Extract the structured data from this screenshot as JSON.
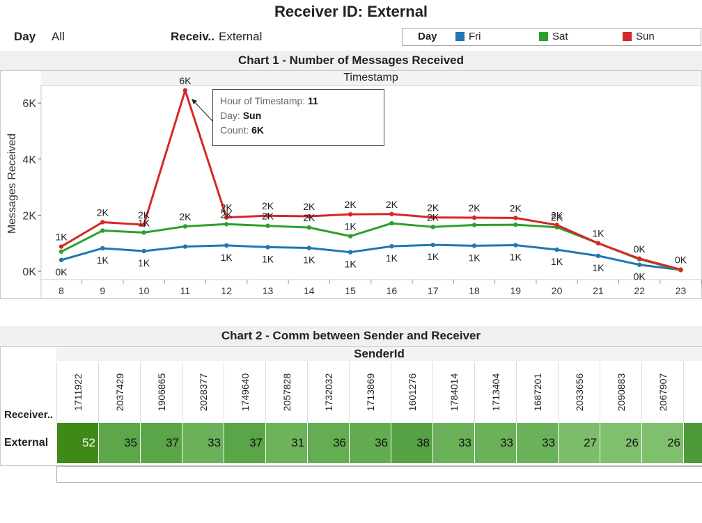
{
  "title": "Receiver ID: External",
  "filters": {
    "day_label": "Day",
    "day_value": "All",
    "receiver_label": "Receiv..",
    "receiver_value": "External"
  },
  "legend": {
    "title": "Day",
    "items": [
      {
        "label": "Fri",
        "color": "#1f77b4"
      },
      {
        "label": "Sat",
        "color": "#2ca02c"
      },
      {
        "label": "Sun",
        "color": "#d62728"
      }
    ]
  },
  "chart1": {
    "heading": "Chart 1 - Number of Messages Received",
    "column_header": "Timestamp",
    "tooltip": {
      "hour_key": "Hour of Timestamp:",
      "hour_val": "11",
      "day_key": "Day:",
      "day_val": "Sun",
      "count_key": "Count:",
      "count_val": "6K"
    }
  },
  "chart_data": {
    "type": "line",
    "x": [
      8,
      9,
      10,
      11,
      12,
      13,
      14,
      15,
      16,
      17,
      18,
      19,
      20,
      21,
      22,
      23
    ],
    "ylabel": "Messages Received",
    "xlabel": "",
    "ylim": [
      0,
      6500
    ],
    "yticks": [
      0,
      2000,
      4000,
      6000
    ],
    "ytick_labels": [
      "0K",
      "2K",
      "4K",
      "6K"
    ],
    "series": [
      {
        "name": "Fri",
        "color": "#1f77b4",
        "values": [
          400,
          820,
          720,
          880,
          920,
          860,
          830,
          680,
          890,
          940,
          910,
          930,
          770,
          550,
          230,
          50
        ],
        "labels": [
          "0K",
          "1K",
          "1K",
          "",
          "1K",
          "1K",
          "1K",
          "1K",
          "1K",
          "1K",
          "1K",
          "1K",
          "1K",
          "1K",
          "0K",
          ""
        ]
      },
      {
        "name": "Sat",
        "color": "#2ca02c",
        "values": [
          700,
          1450,
          1380,
          1600,
          1680,
          1620,
          1560,
          1250,
          1710,
          1580,
          1650,
          1660,
          1570,
          1000,
          430,
          40
        ],
        "labels": [
          "",
          "",
          "1K",
          "2K",
          "2K",
          "2K",
          "2K",
          "1K",
          "",
          "2K",
          "",
          "",
          "2K",
          "",
          "",
          ""
        ]
      },
      {
        "name": "Sun",
        "color": "#d62728",
        "values": [
          880,
          1750,
          1660,
          6450,
          1920,
          1980,
          1960,
          2030,
          2040,
          1920,
          1910,
          1900,
          1650,
          1000,
          450,
          60
        ],
        "labels": [
          "1K",
          "2K",
          "2K",
          "6K",
          "2K",
          "2K",
          "2K",
          "2K",
          "2K",
          "2K",
          "2K",
          "2K",
          "2K",
          "1K",
          "0K",
          "0K"
        ]
      }
    ]
  },
  "chart2": {
    "heading": "Chart 2 - Comm between Sender and Receiver",
    "column_header": "SenderId",
    "row_header": "Receiver..",
    "row_label": "External",
    "senders": [
      "1711922",
      "2037429",
      "1906865",
      "2028377",
      "1749640",
      "2057828",
      "1732032",
      "1713869",
      "1601276",
      "1784014",
      "1713404",
      "1687201",
      "2033656",
      "2090883",
      "2067907",
      ""
    ],
    "values": [
      "52",
      "35",
      "37",
      "33",
      "37",
      "31",
      "36",
      "36",
      "38",
      "33",
      "33",
      "33",
      "27",
      "26",
      "26",
      ""
    ],
    "cell_colors": [
      "#3f8a17",
      "#5da64a",
      "#5aa547",
      "#6bb15a",
      "#5aa547",
      "#6cb35b",
      "#64ad52",
      "#63ac51",
      "#57a245",
      "#6bb15a",
      "#6bb15a",
      "#6bb15a",
      "#7dbd6a",
      "#7fc06c",
      "#7fc06c",
      "#4e9a3a"
    ]
  }
}
